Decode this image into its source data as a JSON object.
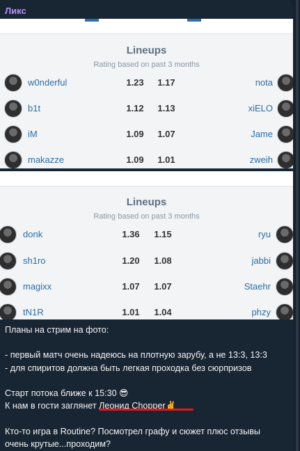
{
  "sender": "Ликс",
  "lineups_top": {
    "title": "Lineups",
    "subtitle": "Rating based on past 3 months",
    "rows": [
      {
        "left": "w0nderful",
        "r1": "1.23",
        "r2": "1.17",
        "right": "nota"
      },
      {
        "left": "b1t",
        "r1": "1.12",
        "r2": "1.13",
        "right": "xiELO"
      },
      {
        "left": "iM",
        "r1": "1.09",
        "r2": "1.07",
        "right": "Jame"
      },
      {
        "left": "makazze",
        "r1": "1.09",
        "r2": "1.01",
        "right": "zweih"
      }
    ]
  },
  "lineups_bottom": {
    "title": "Lineups",
    "subtitle": "Rating based on past 3 months",
    "rows": [
      {
        "left": "donk",
        "r1": "1.36",
        "r2": "1.15",
        "right": "ryu"
      },
      {
        "left": "sh1ro",
        "r1": "1.20",
        "r2": "1.08",
        "right": "jabbi"
      },
      {
        "left": "magixx",
        "r1": "1.07",
        "r2": "1.07",
        "right": "Staehr"
      },
      {
        "left": "tN1R",
        "r1": "1.01",
        "r2": "1.04",
        "right": "phzy"
      }
    ]
  },
  "message": {
    "line1": "Планы на стрим на фото:",
    "line2": "",
    "line3": "- первый матч очень надеюсь на плотную зарубу, а не 13:3, 13:3",
    "line4": "- для спиритов должна быть легкая проходка без сюрпризов",
    "line5": "",
    "line6": "Старт потока ближе к 15:30 😎",
    "line7": "К нам в гости заглянет Леонид Chopper✌️",
    "line8": "",
    "line9": "Кто-то игра в Routine? Посмотрел графу и сюжет плюс отзывы",
    "line10": "очень крутые...проходим?"
  }
}
